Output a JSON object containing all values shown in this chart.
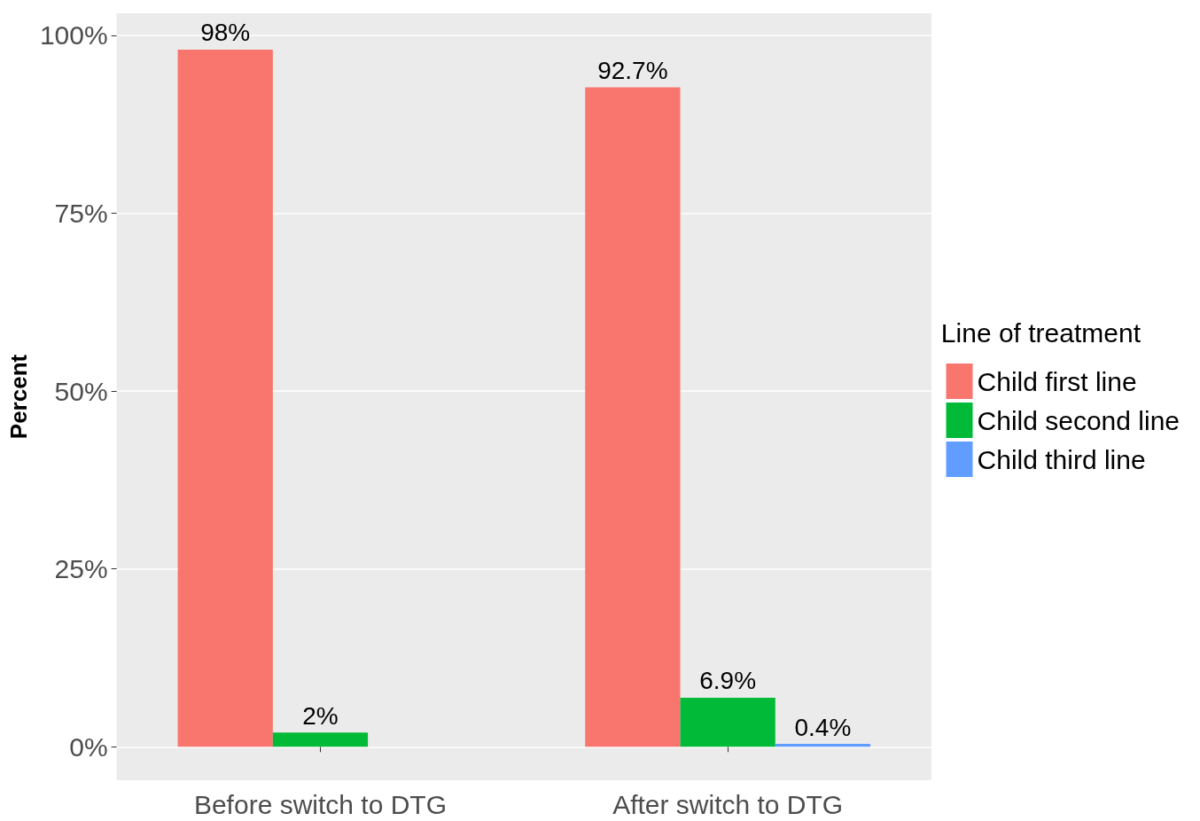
{
  "chart_data": {
    "type": "bar",
    "ylabel": "Percent",
    "legend_title": "Line of treatment",
    "categories": [
      "Before switch to DTG",
      "After switch to DTG"
    ],
    "series": [
      {
        "name": "Child first line",
        "color": "#f8766d",
        "values": [
          98,
          92.7
        ],
        "value_labels": [
          "98%",
          "92.7%"
        ]
      },
      {
        "name": "Child second line",
        "color": "#00ba38",
        "values": [
          2,
          6.9
        ],
        "value_labels": [
          "2%",
          "6.9%"
        ]
      },
      {
        "name": "Child third line",
        "color": "#619cff",
        "values": [
          null,
          0.4
        ],
        "value_labels": [
          null,
          "0.4%"
        ]
      }
    ],
    "ylim": [
      -4.7,
      103.1
    ],
    "yticks": [
      {
        "value": 0,
        "label": "0%"
      },
      {
        "value": 25,
        "label": "25%"
      },
      {
        "value": 50,
        "label": "50%"
      },
      {
        "value": 75,
        "label": "75%"
      },
      {
        "value": 100,
        "label": "100%"
      }
    ],
    "grid": "y",
    "legend": "right"
  }
}
